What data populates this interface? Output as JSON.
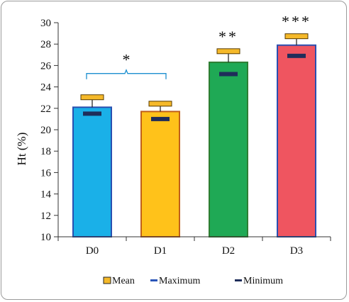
{
  "chart_data": {
    "type": "bar",
    "title": "",
    "xlabel": "",
    "ylabel": "Ht  (%)",
    "ylim": [
      10,
      30
    ],
    "yticks": [
      10,
      12,
      14,
      16,
      18,
      20,
      22,
      24,
      26,
      28,
      30
    ],
    "grid": false,
    "legend_position": "bottom",
    "categories": [
      "D0",
      "D1",
      "D2",
      "D3"
    ],
    "series": [
      {
        "name": "Mean",
        "values": [
          22.1,
          21.7,
          26.3,
          27.9
        ]
      },
      {
        "name": "Maximum",
        "values": [
          23.0,
          22.4,
          27.3,
          28.7
        ]
      },
      {
        "name": "Minimum",
        "values": [
          21.5,
          21.0,
          25.2,
          26.9
        ]
      }
    ],
    "bar_colors": [
      "#1ab0e8",
      "#ffc21a",
      "#1fa955",
      "#ef5560"
    ],
    "bar_edge_colors": [
      "#2a4fb0",
      "#c0601a",
      "#2e7d32",
      "#2a4fb0"
    ],
    "max_marker_color": "#f5b92a",
    "min_marker_color": "#1f2d5a",
    "significance": [
      {
        "label": "*",
        "categories": [
          "D0",
          "D1"
        ]
      },
      {
        "label": "**",
        "categories": [
          "D2"
        ]
      },
      {
        "label": "***",
        "categories": [
          "D3"
        ]
      }
    ],
    "bracket_color": "#1c8fd0"
  }
}
